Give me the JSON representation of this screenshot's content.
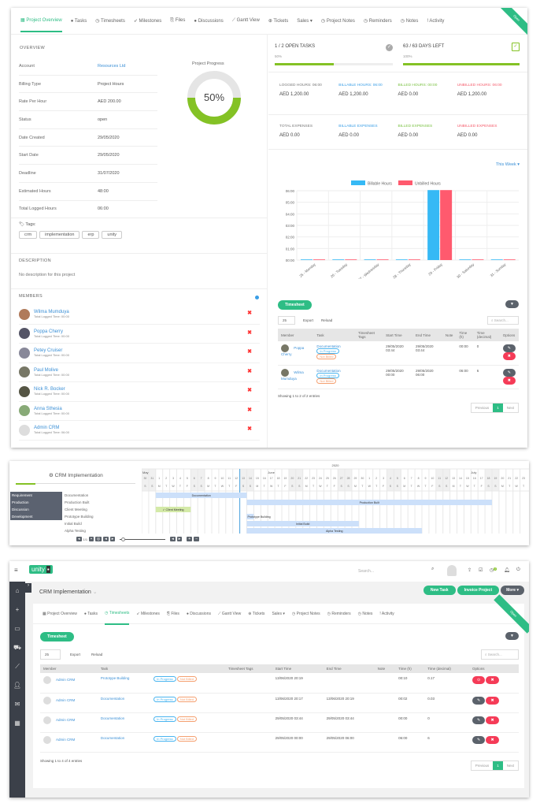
{
  "overview_page": {
    "tabs": [
      "Project Overview",
      "Tasks",
      "Timesheets",
      "Milestones",
      "Files",
      "Discussions",
      "Gantt View",
      "Tickets",
      "Sales ▾",
      "Project Notes",
      "Reminders",
      "Notes",
      "Activity"
    ],
    "active_tab": "Project Overview",
    "ribbon": "Open",
    "overview_title": "OVERVIEW",
    "fields": [
      {
        "label": "Account",
        "value": "Resources Ltd",
        "link": true
      },
      {
        "label": "Billing Type",
        "value": "Project Hours"
      },
      {
        "label": "Rate Per Hour",
        "value": "AED 200.00"
      },
      {
        "label": "Status",
        "value": "open"
      },
      {
        "label": "Date Created",
        "value": "29/05/2020"
      },
      {
        "label": "Start Date",
        "value": "29/05/2020"
      },
      {
        "label": "Deadline",
        "value": "31/07/2020"
      },
      {
        "label": "Estimated Hours",
        "value": "48:00"
      },
      {
        "label": "Total Logged Hours",
        "value": "06:00"
      }
    ],
    "progress_title": "Project Progress",
    "progress_label": "50%",
    "progress_value": 50,
    "tags_label": "Tags:",
    "tags": [
      "crm",
      "implementation",
      "erp",
      "unity"
    ],
    "description_title": "DESCRIPTION",
    "description_text": "No description for this project",
    "members_title": "MEMBERS",
    "members": [
      {
        "name": "Wilma Mumduya",
        "sub": "Total Logged Time: 00:00"
      },
      {
        "name": "Poppa Cherry",
        "sub": "Total Logged Time: 00:00"
      },
      {
        "name": "Petey Cruiser",
        "sub": "Total Logged Time: 00:00"
      },
      {
        "name": "Paul Molive",
        "sub": "Total Logged Time: 00:00"
      },
      {
        "name": "Nick R. Bocker",
        "sub": "Total Logged Time: 00:00"
      },
      {
        "name": "Anna Sthesia",
        "sub": "Total Logged Time: 00:00"
      },
      {
        "name": "Admin CRM",
        "sub": "Total Logged Time: 06:00"
      }
    ],
    "open_tasks": {
      "title": "1 / 2 OPEN TASKS",
      "percent_label": "50%",
      "value": 50
    },
    "days_left": {
      "title": "63 / 63 DAYS LEFT",
      "percent_label": "100%",
      "value": 100
    },
    "hours": [
      {
        "label": "LOGGED HOURS: 06:00",
        "value": "AED 1,200.00",
        "color": "#777777"
      },
      {
        "label": "BILLABLE HOURS: 06:00",
        "value": "AED 1,200.00",
        "color": "#3a9ee6"
      },
      {
        "label": "BILLED HOURS: 00:00",
        "value": "AED 0.00",
        "color": "#7ac142"
      },
      {
        "label": "UNBILLED HOURS: 06:00",
        "value": "AED 1,200.00",
        "color": "#f55a6a"
      }
    ],
    "expenses": [
      {
        "label": "TOTAL EXPENSES",
        "value": "AED 0.00",
        "color": "#777777"
      },
      {
        "label": "BILLABLE EXPENSES",
        "value": "AED 0.00",
        "color": "#3a9ee6"
      },
      {
        "label": "BILLED EXPENSES",
        "value": "AED 0.00",
        "color": "#7ac142"
      },
      {
        "label": "UNBILLED EXPENSES",
        "value": "AED 0.00",
        "color": "#f55a6a"
      }
    ],
    "chart_period": "This Week ▾",
    "timesheet": {
      "button": "Timesheet",
      "page_size": "25",
      "export": "Export",
      "reload": "Reload",
      "search_placeholder": "Search...",
      "columns": [
        "Member",
        "Task",
        "Timesheet Tags",
        "Start Time",
        "End Time",
        "Note",
        "Time (h)",
        "Time (decimal)",
        "Options"
      ],
      "rows": [
        {
          "member": "Poppa Cherry",
          "task": "Documentation",
          "status": "In Progress",
          "billing": "Not Billed",
          "start": "29/05/2020 03:44",
          "end": "29/05/2020 03:44",
          "note": "",
          "hours": "00:00",
          "decimal": "0"
        },
        {
          "member": "Wilma Mumduya",
          "task": "Documentation",
          "status": "In Progress",
          "billing": "Not Billed",
          "start": "29/05/2020 00:00",
          "end": "29/05/2020 06:00",
          "note": "",
          "hours": "06:00",
          "decimal": "6"
        }
      ],
      "info": "Showing 1 to 2 of 2 entries",
      "prev": "Previous",
      "page": "1",
      "next": "Next"
    }
  },
  "chart_data": {
    "type": "bar",
    "categories": [
      "25 - Monday",
      "26 - Tuesday",
      "27 - Wednesday",
      "28 - Thursday",
      "29 - Friday",
      "30 - Saturday",
      "31 - Sunday"
    ],
    "series": [
      {
        "name": "Billable Hours",
        "values": [
          0,
          0,
          0,
          0,
          6,
          0,
          0
        ],
        "color": "#36b9f5"
      },
      {
        "name": "Unbilled Hours",
        "values": [
          0,
          0,
          0,
          0,
          6,
          0,
          0
        ],
        "color": "#ff5a6e"
      }
    ],
    "yticks": [
      "00:00",
      "01:00",
      "02:00",
      "03:00",
      "04:00",
      "05:00",
      "06:00"
    ],
    "ylim": [
      0,
      6
    ],
    "legend": "top",
    "grid": true
  },
  "gantt": {
    "title": "CRM Implementation",
    "year": "2020",
    "months": [
      "May",
      "June",
      "July"
    ],
    "groups": [
      "Requirement",
      "Production",
      "Discussion",
      "Development"
    ],
    "tasks": [
      {
        "name": "Documentation",
        "start": "2020-06-01",
        "end": "2020-06-13"
      },
      {
        "name": "Production Built",
        "start": "2020-06-14",
        "end": "2020-07-18"
      },
      {
        "name": "Client Meeting",
        "start": "2020-06-01",
        "end": "2020-06-05",
        "label": "✓ Client Meeting",
        "color": "#d4eaa8"
      },
      {
        "name": "Prototype Building",
        "start": "2020-06-14",
        "end": "2020-06-14"
      },
      {
        "name": "Initial Build",
        "start": "2020-06-14",
        "end": "2020-06-29"
      },
      {
        "name": "Alpha Testing",
        "start": "2020-06-14",
        "end": "2020-07-08"
      }
    ],
    "page_info": "1/1"
  },
  "timesheets_page": {
    "logo": "unity",
    "search_placeholder": "Search...",
    "project_title": "CRM Implementation",
    "new_task": "New Task",
    "invoice_project": "Invoice Project",
    "more": "More ▾",
    "tabs": [
      "Project Overview",
      "Tasks",
      "Timesheets",
      "Milestones",
      "Files",
      "Discussions",
      "Gantt View",
      "Tickets",
      "Sales ▾",
      "Project Notes",
      "Reminders",
      "Notes",
      "Activity"
    ],
    "active_tab": "Timesheets",
    "ribbon": "Open",
    "notification_count": "0",
    "timesheet": {
      "button": "Timesheet",
      "page_size": "25",
      "export": "Export",
      "reload": "Reload",
      "search_placeholder": "Search...",
      "columns": [
        "Member",
        "Task",
        "",
        "Timesheet Tags",
        "Start Time",
        "End Time",
        "Note",
        "Time (h)",
        "Time (decimal)",
        "Options"
      ],
      "rows": [
        {
          "member": "Admin CRM",
          "task": "Prototype Building",
          "status": "In Progress",
          "billing": "Not Billed",
          "start": "13/06/2020 20:19",
          "end": "",
          "note": "",
          "hours": "00:10",
          "decimal": "0.17",
          "running": true
        },
        {
          "member": "Admin CRM",
          "task": "Documentation",
          "status": "In Progress",
          "billing": "Not Billed",
          "start": "13/06/2020 20:17",
          "end": "13/06/2020 20:19",
          "note": "",
          "hours": "00:02",
          "decimal": "0.03"
        },
        {
          "member": "Admin CRM",
          "task": "Documentation",
          "status": "In Progress",
          "billing": "Not Billed",
          "start": "29/05/2020 03:44",
          "end": "29/05/2020 03:44",
          "note": "",
          "hours": "00:00",
          "decimal": "0"
        },
        {
          "member": "Admin CRM",
          "task": "Documentation",
          "status": "In Progress",
          "billing": "Not Billed",
          "start": "29/05/2020 00:00",
          "end": "29/05/2020 06:00",
          "note": "",
          "hours": "06:00",
          "decimal": "6"
        }
      ],
      "info": "Showing 1 to 4 of 4 entries",
      "prev": "Previous",
      "page": "1",
      "next": "Next"
    }
  }
}
